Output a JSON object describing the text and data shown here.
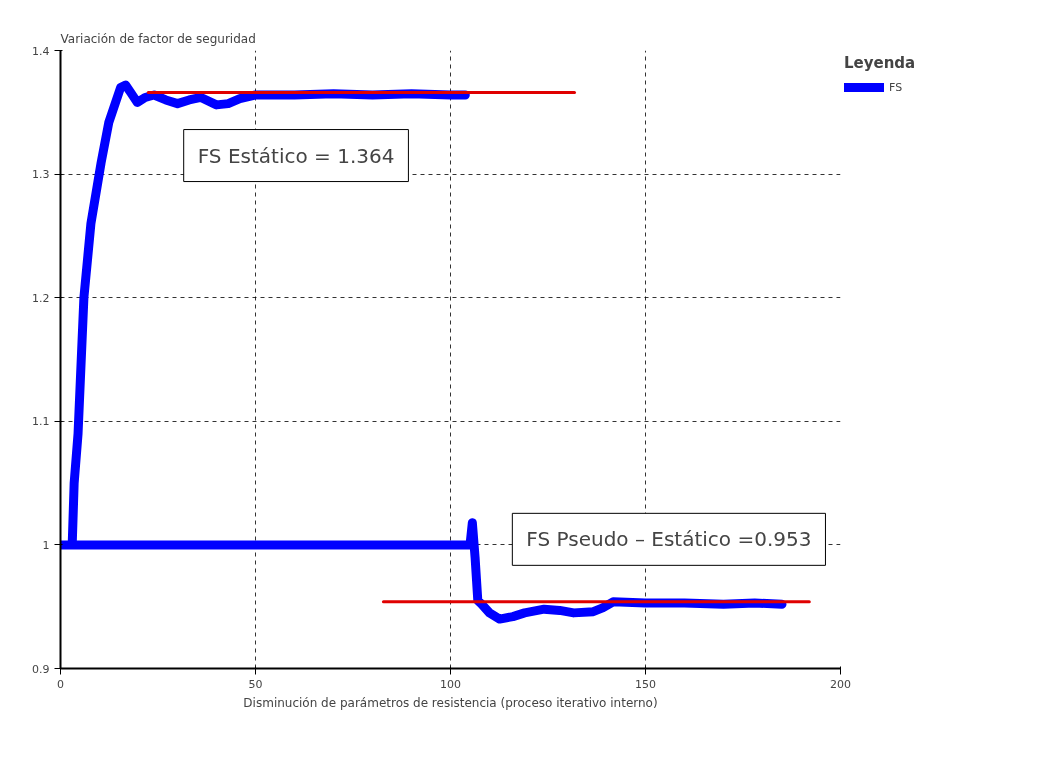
{
  "chart_data": {
    "type": "line",
    "xlabel": "Disminución de parámetros de resistencia (proceso iterativo interno)",
    "ylabel": "Variación de factor de seguridad",
    "legend_title": "Leyenda",
    "xlim": [
      0,
      200
    ],
    "xticks": [
      0,
      50,
      100,
      150,
      200
    ],
    "ylim": [
      0.9,
      1.4
    ],
    "yticks": [
      0.9,
      1,
      1.1,
      1.2,
      1.3,
      1.4
    ],
    "grid": true,
    "legend": "right",
    "marker": "none",
    "line_style": "solid",
    "series": [
      {
        "name": "FS",
        "color": "#0000ff",
        "x": [
          3,
          3.5,
          4.5,
          6,
          7.8,
          10.4,
          12.4,
          15.4,
          16.7,
          18,
          19.7,
          21.7,
          24,
          27,
          30,
          33,
          36,
          40,
          43,
          46,
          50,
          60,
          70,
          80,
          90,
          100,
          103.8,
          null,
          0,
          105,
          105.6,
          106.3,
          107,
          108,
          110,
          112.6,
          116,
          119,
          124,
          128,
          131.6,
          136.6,
          139,
          141.7,
          150,
          160,
          170,
          178,
          185
        ],
        "values": [
          1.0,
          1.05,
          1.09,
          1.2,
          1.26,
          1.309,
          1.342,
          1.37,
          1.372,
          1.366,
          1.358,
          1.362,
          1.364,
          1.36,
          1.357,
          1.36,
          1.362,
          1.356,
          1.357,
          1.361,
          1.364,
          1.364,
          1.365,
          1.364,
          1.365,
          1.364,
          1.364,
          null,
          1.0,
          1.0,
          1.018,
          0.99,
          0.955,
          0.952,
          0.945,
          0.94,
          0.942,
          0.945,
          0.948,
          0.947,
          0.945,
          0.946,
          0.949,
          0.954,
          0.953,
          0.953,
          0.952,
          0.953,
          0.952
        ]
      },
      {
        "color": "#e00000",
        "x": [
          22.5,
          131.8
        ],
        "values": [
          1.366,
          1.366
        ]
      },
      {
        "color": "#e00000",
        "x": [
          82.8,
          192
        ],
        "values": [
          0.954,
          0.954
        ]
      }
    ],
    "annotations": [
      "FS Estático = 1.364",
      "FS Pseudo – Estático =0.953"
    ]
  }
}
